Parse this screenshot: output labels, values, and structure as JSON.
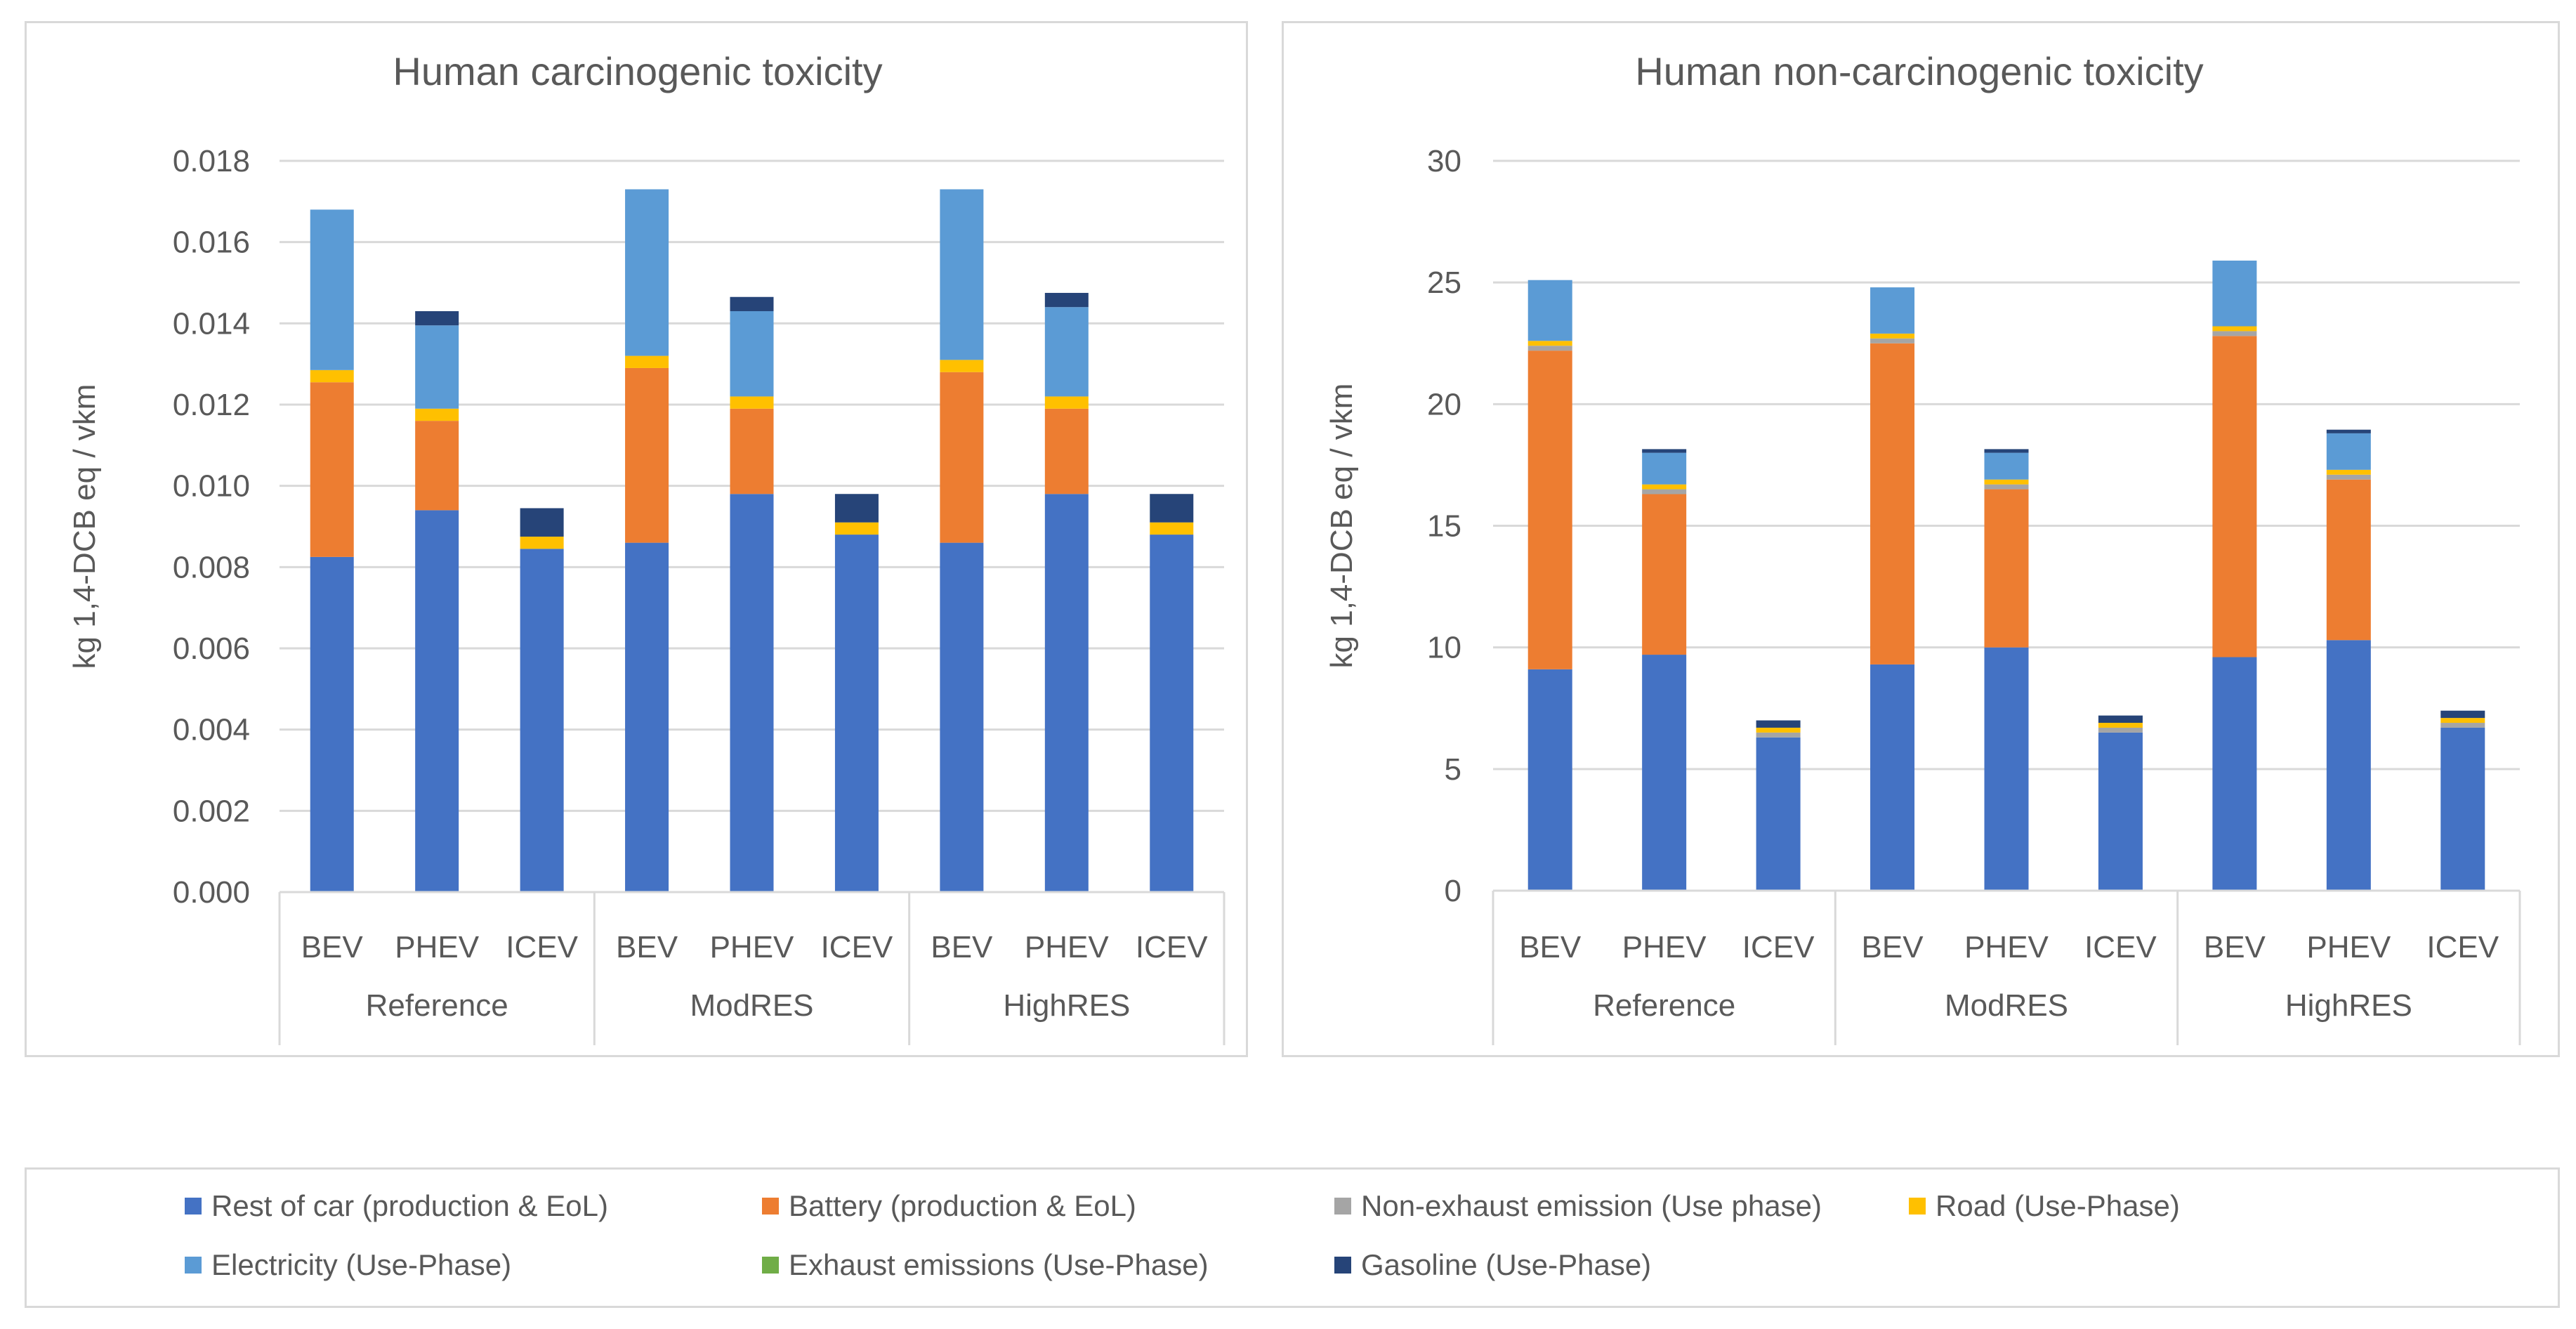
{
  "colors": {
    "rest_of_car": "#4472C4",
    "battery": "#ED7D31",
    "non_exhaust": "#A5A5A5",
    "road": "#FFC000",
    "electricity": "#5B9BD5",
    "exhaust": "#70AD47",
    "gasoline": "#264478",
    "grid": "#d9d9d9",
    "text": "#595959"
  },
  "legend": {
    "items": [
      {
        "key": "rest_of_car",
        "label": "Rest of car (production & EoL)"
      },
      {
        "key": "battery",
        "label": "Battery (production & EoL)"
      },
      {
        "key": "non_exhaust",
        "label": "Non-exhaust emission (Use phase)"
      },
      {
        "key": "road",
        "label": "Road (Use-Phase)"
      },
      {
        "key": "electricity",
        "label": "Electricity (Use-Phase)"
      },
      {
        "key": "exhaust",
        "label": "Exhaust emissions (Use-Phase)"
      },
      {
        "key": "gasoline",
        "label": "Gasoline (Use-Phase)"
      }
    ]
  },
  "chart_data": [
    {
      "type": "bar",
      "stacked": true,
      "title": "Human carcinogenic toxicity",
      "ylabel": "kg 1,4-DCB eq / vkm",
      "xlabel": "",
      "ylim": [
        0,
        0.018
      ],
      "yticks": [
        "0.000",
        "0.002",
        "0.004",
        "0.006",
        "0.008",
        "0.010",
        "0.012",
        "0.014",
        "0.016",
        "0.018"
      ],
      "ytick_values": [
        0,
        0.002,
        0.004,
        0.006,
        0.008,
        0.01,
        0.012,
        0.014,
        0.016,
        0.018
      ],
      "groups": [
        "Reference",
        "ModRES",
        "HighRES"
      ],
      "categories": [
        "BEV",
        "PHEV",
        "ICEV",
        "BEV",
        "PHEV",
        "ICEV",
        "BEV",
        "PHEV",
        "ICEV"
      ],
      "series": [
        {
          "key": "rest_of_car",
          "name": "Rest of car (production & EoL)",
          "values": [
            0.00825,
            0.0094,
            0.00845,
            0.0086,
            0.0098,
            0.0088,
            0.0086,
            0.0098,
            0.0088
          ]
        },
        {
          "key": "battery",
          "name": "Battery (production & EoL)",
          "values": [
            0.0043,
            0.0022,
            0,
            0.0043,
            0.0021,
            0,
            0.0042,
            0.0021,
            0
          ]
        },
        {
          "key": "non_exhaust",
          "name": "Non-exhaust emission (Use phase)",
          "values": [
            0,
            0,
            0,
            0,
            0,
            0,
            0,
            0,
            0
          ]
        },
        {
          "key": "road",
          "name": "Road (Use-Phase)",
          "values": [
            0.0003,
            0.0003,
            0.0003,
            0.0003,
            0.0003,
            0.0003,
            0.0003,
            0.0003,
            0.0003
          ]
        },
        {
          "key": "electricity",
          "name": "Electricity (Use-Phase)",
          "values": [
            0.00395,
            0.00205,
            0,
            0.0041,
            0.0021,
            0,
            0.0042,
            0.0022,
            0
          ]
        },
        {
          "key": "exhaust",
          "name": "Exhaust emissions (Use-Phase)",
          "values": [
            0,
            0,
            0,
            0,
            0,
            0,
            0,
            0,
            0
          ]
        },
        {
          "key": "gasoline",
          "name": "Gasoline (Use-Phase)",
          "values": [
            0,
            0.00035,
            0.0007,
            0,
            0.00035,
            0.0007,
            0,
            0.00035,
            0.0007
          ]
        }
      ]
    },
    {
      "type": "bar",
      "stacked": true,
      "title": "Human non-carcinogenic toxicity",
      "ylabel": "kg 1,4-DCB eq / vkm",
      "xlabel": "",
      "ylim": [
        0,
        30
      ],
      "yticks": [
        "0",
        "5",
        "10",
        "15",
        "20",
        "25",
        "30"
      ],
      "ytick_values": [
        0,
        5,
        10,
        15,
        20,
        25,
        30
      ],
      "groups": [
        "Reference",
        "ModRES",
        "HighRES"
      ],
      "categories": [
        "BEV",
        "PHEV",
        "ICEV",
        "BEV",
        "PHEV",
        "ICEV",
        "BEV",
        "PHEV",
        "ICEV"
      ],
      "series": [
        {
          "key": "rest_of_car",
          "name": "Rest of car (production & EoL)",
          "values": [
            9.1,
            9.7,
            6.3,
            9.3,
            10.0,
            6.5,
            9.6,
            10.3,
            6.7
          ]
        },
        {
          "key": "battery",
          "name": "Battery (production & EoL)",
          "values": [
            13.1,
            6.6,
            0,
            13.2,
            6.5,
            0,
            13.2,
            6.6,
            0
          ]
        },
        {
          "key": "non_exhaust",
          "name": "Non-exhaust emission (Use phase)",
          "values": [
            0.2,
            0.2,
            0.2,
            0.2,
            0.2,
            0.2,
            0.2,
            0.2,
            0.2
          ]
        },
        {
          "key": "road",
          "name": "Road (Use-Phase)",
          "values": [
            0.2,
            0.2,
            0.2,
            0.2,
            0.2,
            0.2,
            0.2,
            0.2,
            0.2
          ]
        },
        {
          "key": "electricity",
          "name": "Electricity (Use-Phase)",
          "values": [
            2.5,
            1.3,
            0,
            1.9,
            1.1,
            0,
            2.7,
            1.5,
            0
          ]
        },
        {
          "key": "exhaust",
          "name": "Exhaust emissions (Use-Phase)",
          "values": [
            0,
            0,
            0,
            0,
            0,
            0,
            0,
            0,
            0
          ]
        },
        {
          "key": "gasoline",
          "name": "Gasoline (Use-Phase)",
          "values": [
            0,
            0.15,
            0.3,
            0,
            0.15,
            0.3,
            0,
            0.15,
            0.3
          ]
        }
      ]
    }
  ]
}
